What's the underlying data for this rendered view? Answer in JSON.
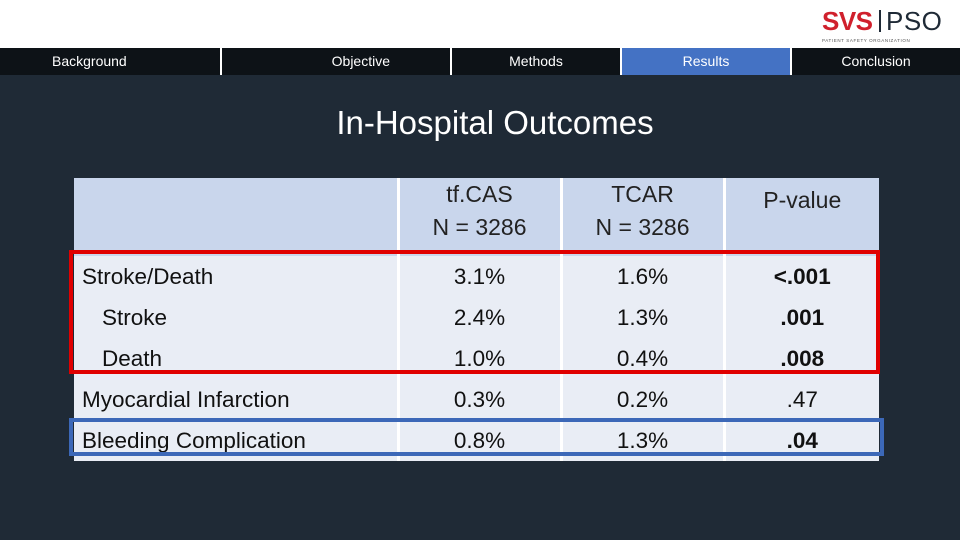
{
  "logo": {
    "left": "SVS",
    "right": "PSO",
    "tagline": "PATIENT SAFETY ORGANIZATION"
  },
  "nav": {
    "tabs": [
      {
        "label": "Background"
      },
      {
        "label": "Objective"
      },
      {
        "label": "Methods"
      },
      {
        "label": "Results"
      },
      {
        "label": "Conclusion"
      }
    ],
    "active_tab": "Results"
  },
  "title": "In-Hospital Outcomes",
  "table": {
    "headers": [
      {
        "line1": "tf.CAS",
        "line2": "N = 3286"
      },
      {
        "line1": "TCAR",
        "line2": "N = 3286"
      },
      {
        "line1": "P-value"
      }
    ],
    "rows": [
      {
        "label": "Stroke/Death",
        "tfcas": "3.1%",
        "tcar": "1.6%",
        "p": "<.001"
      },
      {
        "label": "Stroke",
        "tfcas": "2.4%",
        "tcar": "1.3%",
        "p": ".001"
      },
      {
        "label": "Death",
        "tfcas": "1.0%",
        "tcar": "0.4%",
        "p": ".008"
      },
      {
        "label": "Myocardial Infarction",
        "tfcas": "0.3%",
        "tcar": "0.2%",
        "p": ".47"
      },
      {
        "label": "Bleeding Complication",
        "tfcas": "0.8%",
        "tcar": "1.3%",
        "p": ".04"
      }
    ]
  },
  "colors": {
    "background": "#1f2a36",
    "nav_active": "#4472c4",
    "highlight_red": "#e00000",
    "highlight_blue": "#3c68b8"
  }
}
